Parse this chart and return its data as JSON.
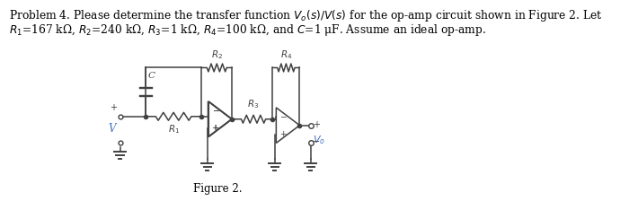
{
  "background_color": "#ffffff",
  "text_line1": "Problem 4. Please determine the transfer function $V_o(s)/V(s)$ for the op-amp circuit shown in Figure 2. Let",
  "text_line2": "$R_1$=167 kΩ, $R_2$=240 kΩ, $R_3$=1 kΩ, $R_4$=100 kΩ, and $C$=1 μF. Assume an ideal op-amp.",
  "figure_label": "Figure 2.",
  "figsize": [
    7.0,
    2.24
  ],
  "dpi": 100,
  "text_color": "#4472c4",
  "circuit_color": "#404040"
}
